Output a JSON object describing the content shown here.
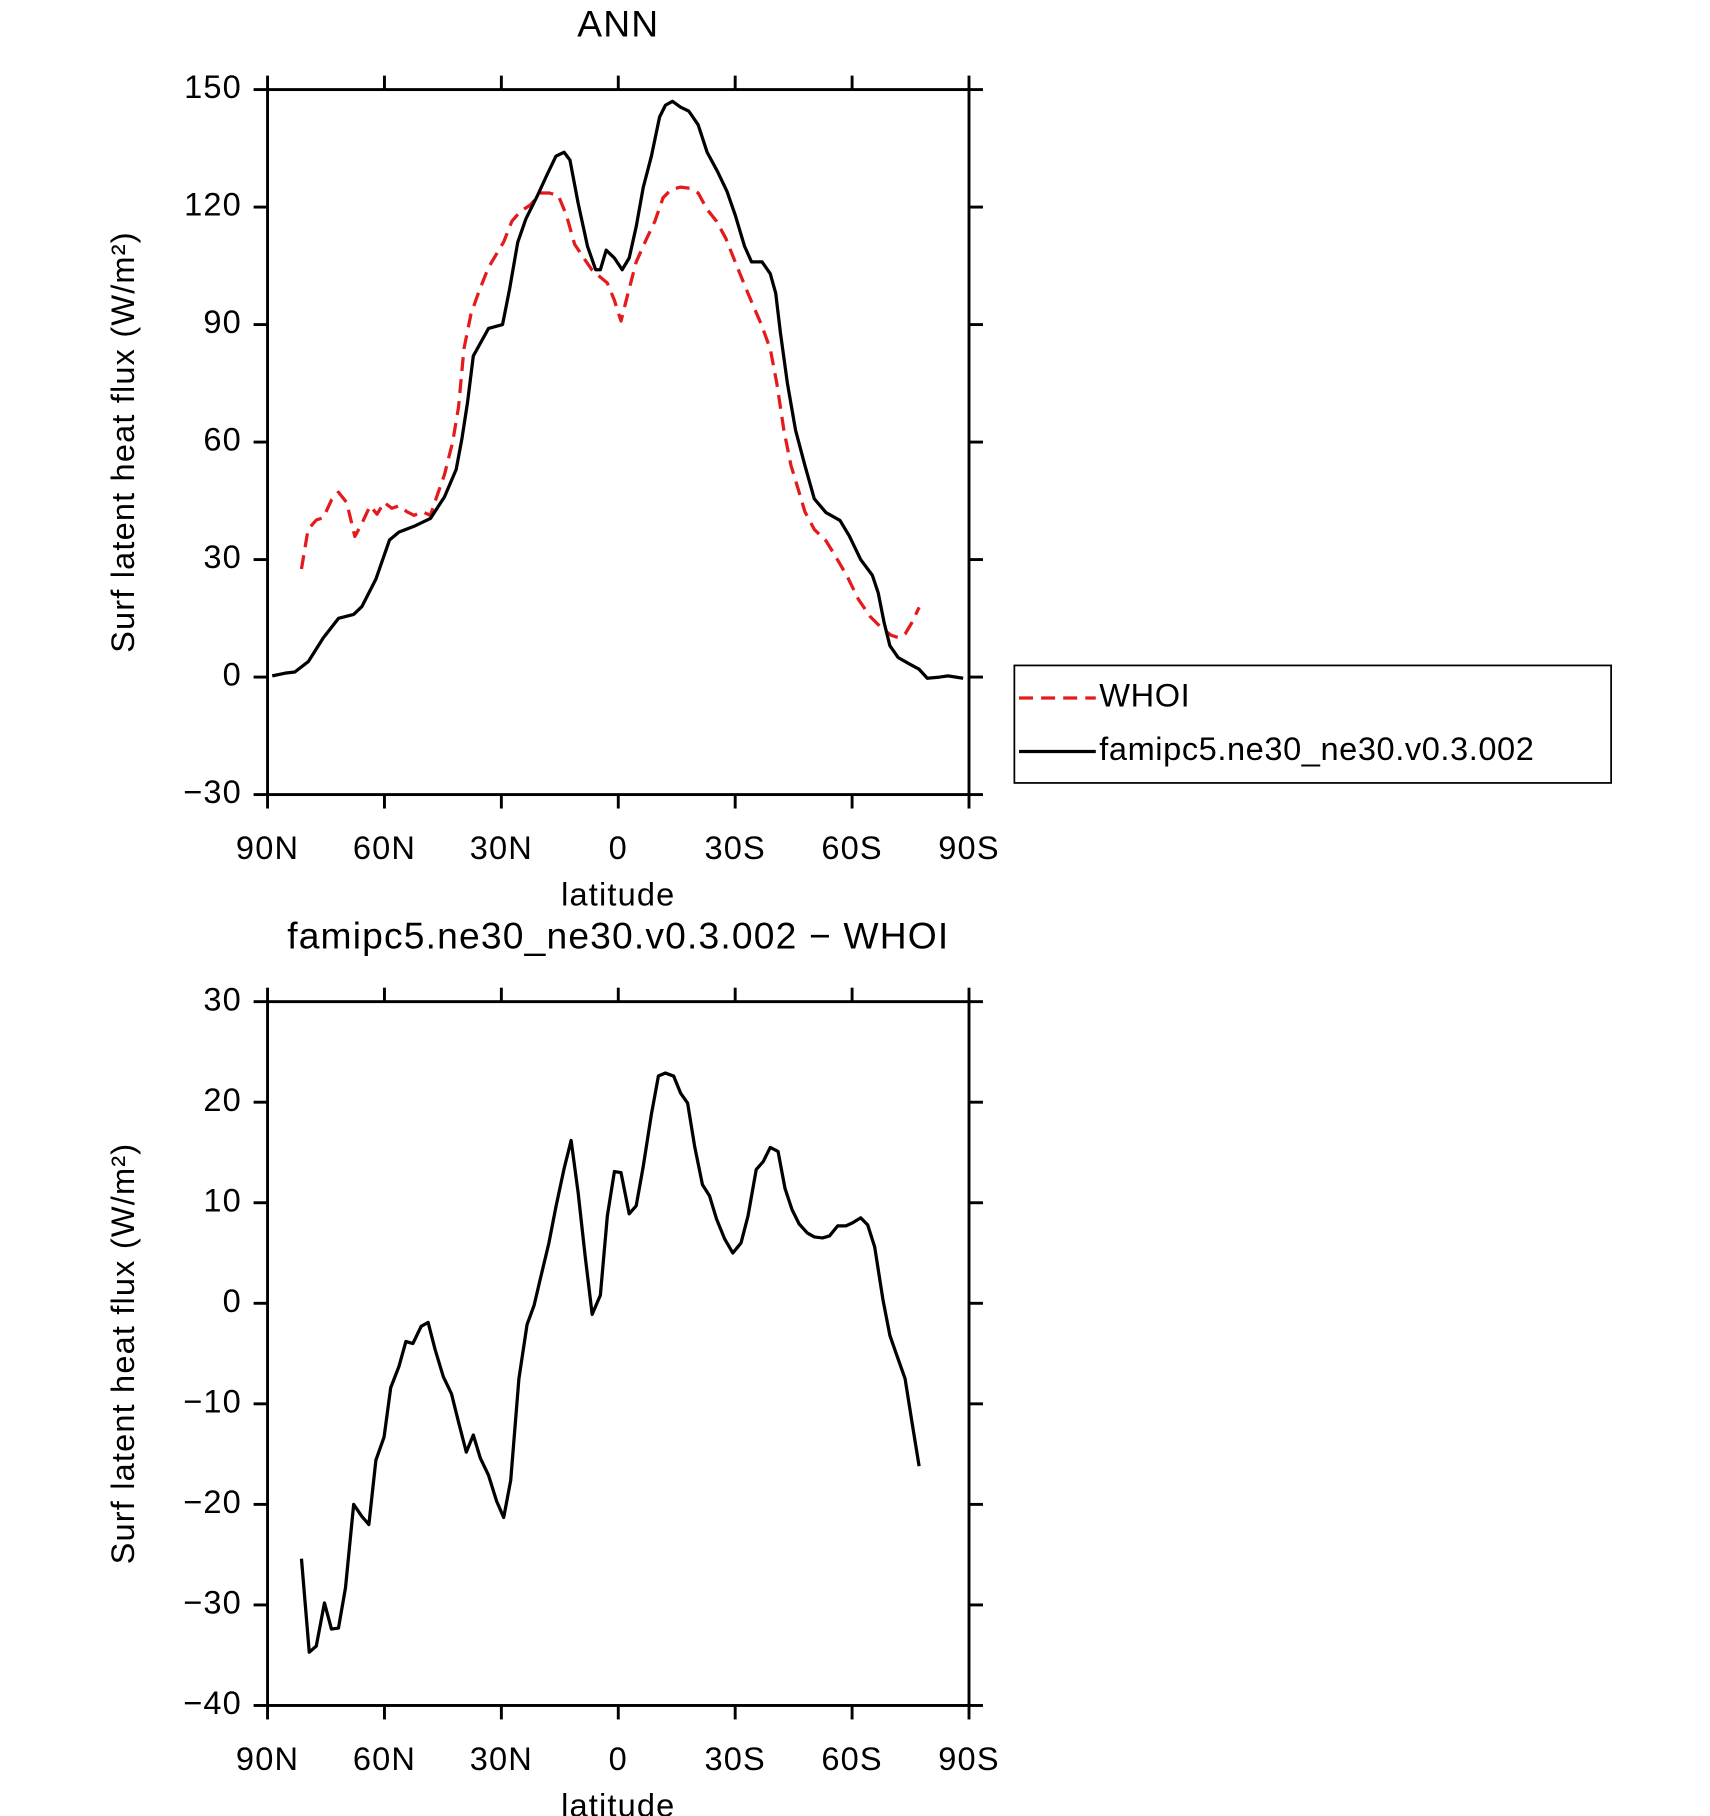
{
  "chart_data": [
    {
      "type": "line",
      "title": "ANN",
      "xlabel": "latitude",
      "ylabel": "Surf latent heat flux (W/m²)",
      "xlim": [
        90,
        -90
      ],
      "xticks": [
        {
          "value": 90,
          "label": "90N"
        },
        {
          "value": 60,
          "label": "60N"
        },
        {
          "value": 30,
          "label": "30N"
        },
        0,
        {
          "value": -30,
          "label": "30S"
        },
        {
          "value": -60,
          "label": "60S"
        },
        {
          "value": -90,
          "label": "90S"
        }
      ],
      "ylim": [
        -30,
        150
      ],
      "yticks": [
        {
          "value": -30,
          "label": "−30"
        },
        0,
        30,
        60,
        90,
        120,
        150
      ],
      "legend": "right",
      "series": [
        {
          "name": "WHOI",
          "color": "#e41a1c",
          "line_style": "dashed",
          "x": [
            81.3,
            79.6,
            77.5,
            75.7,
            73.6,
            71.8,
            69.7,
            67.6,
            65.8,
            63.7,
            61.9,
            60.1,
            58.1,
            56.3,
            54.2,
            52.4,
            50.3,
            48.2,
            46.4,
            44.6,
            42.5,
            41.0,
            39.6,
            37.8,
            35.7,
            33.3,
            31.2,
            29.4,
            27.3,
            25.2,
            22.5,
            19.9,
            17.8,
            15.4,
            13.3,
            11.2,
            8.8,
            6.7,
            4.6,
            2.8,
            1.0,
            -0.7,
            -2.5,
            -4.6,
            -7.3,
            -9.4,
            -11.5,
            -13.6,
            -16.0,
            -18.4,
            -20.5,
            -22.8,
            -25.2,
            -27.6,
            -30.0,
            -32.4,
            -34.5,
            -36.6,
            -39.0,
            -40.7,
            -42.5,
            -44.3,
            -46.1,
            -47.9,
            -50.3,
            -53.3,
            -55.7,
            -58.7,
            -61.6,
            -64.6,
            -67.6,
            -70.0,
            -71.8,
            -73.6,
            -75.4,
            -77.2
          ],
          "values": [
            27.6,
            37.7,
            40.1,
            40.7,
            45.2,
            47.2,
            44.6,
            35.9,
            39.2,
            43.7,
            41.6,
            44.6,
            43.1,
            43.7,
            42.2,
            41.3,
            42.2,
            41.3,
            46.6,
            51.7,
            60.0,
            68.9,
            83.8,
            92.7,
            98.6,
            104.6,
            108.1,
            111.1,
            116.4,
            118.8,
            120.6,
            123.6,
            123.6,
            123.0,
            117.9,
            110.5,
            106.9,
            103.9,
            102.1,
            100.6,
            96.2,
            90.9,
            98.0,
            106.0,
            112.0,
            116.4,
            122.4,
            124.5,
            125.1,
            124.8,
            123.6,
            119.4,
            116.4,
            112.0,
            106.0,
            100.1,
            95.1,
            90.3,
            83.8,
            74.9,
            63.0,
            54.1,
            48.2,
            42.2,
            37.7,
            34.8,
            30.9,
            25.8,
            19.9,
            15.5,
            12.5,
            10.7,
            10.1,
            11.0,
            14.0,
            17.8
          ]
        },
        {
          "name": "famipc5.ne30_ne30.v0.3.002",
          "color": "#000000",
          "line_style": "solid",
          "x": [
            88.8,
            85.5,
            83,
            79.5,
            75.7,
            71.8,
            67.9,
            65.8,
            62.2,
            58.7,
            56.3,
            52.4,
            48.2,
            44.6,
            41.6,
            40.1,
            38.7,
            37.2,
            33.3,
            29.7,
            27.9,
            25.8,
            23.7,
            20.7,
            18.4,
            16,
            13.9,
            12.4,
            10.3,
            7.9,
            5.8,
            4.6,
            3.1,
            1,
            -1,
            -2.8,
            -4.6,
            -6.4,
            -8.5,
            -10.6,
            -12.1,
            -13.9,
            -16,
            -18.1,
            -20.5,
            -22.8,
            -25.5,
            -27.9,
            -30,
            -32.4,
            -34.2,
            -36.9,
            -39,
            -40.4,
            -41.6,
            -43.4,
            -45.5,
            -47.9,
            -50.3,
            -53.3,
            -56.9,
            -59.3,
            -62.2,
            -65.2,
            -66.7,
            -68.2,
            -69.7,
            -71.8,
            -74.8,
            -77.2,
            -79.3,
            -82.5,
            -84.6,
            -88.5
          ],
          "values": [
            0.3,
            1,
            1.3,
            4,
            10,
            15,
            16,
            18,
            25,
            35,
            37,
            38.5,
            40.5,
            46,
            53,
            61,
            70,
            82,
            89,
            90,
            99,
            111,
            117,
            123,
            128,
            133,
            134,
            132,
            121,
            110,
            104,
            104,
            109,
            107,
            104,
            107,
            115,
            125,
            133,
            143,
            146,
            147,
            145.5,
            144.5,
            141,
            134,
            129,
            124,
            118,
            110,
            106,
            106,
            103,
            98,
            88,
            75,
            63,
            54,
            45.5,
            42,
            40,
            36,
            30,
            26,
            21.5,
            14,
            8,
            5,
            3.3,
            2,
            -0.3,
            0,
            0.3,
            -0.3
          ]
        }
      ]
    },
    {
      "type": "line",
      "title": "famipc5.ne30_ne30.v0.3.002 − WHOI",
      "xlabel": "latitude",
      "ylabel": "Surf latent heat flux (W/m²)",
      "xlim": [
        90,
        -90
      ],
      "xticks": [
        {
          "value": 90,
          "label": "90N"
        },
        {
          "value": 60,
          "label": "60N"
        },
        {
          "value": 30,
          "label": "30N"
        },
        0,
        {
          "value": -30,
          "label": "30S"
        },
        {
          "value": -60,
          "label": "60S"
        },
        {
          "value": -90,
          "label": "90S"
        }
      ],
      "ylim": [
        -40,
        30
      ],
      "yticks": [
        {
          "value": -40,
          "label": "−40"
        },
        {
          "value": -30,
          "label": "−30"
        },
        {
          "value": -20,
          "label": "−20"
        },
        {
          "value": -10,
          "label": "−10"
        },
        0,
        10,
        20,
        30
      ],
      "color": "#000000",
      "x": [
        81.3,
        79.3,
        77.5,
        75.4,
        73.6,
        71.8,
        70.0,
        67.9,
        65.8,
        64.0,
        62.2,
        60.1,
        58.4,
        56.3,
        54.5,
        52.7,
        50.6,
        48.8,
        47.0,
        44.9,
        42.8,
        41.0,
        39.0,
        37.2,
        35.4,
        33.3,
        31.2,
        29.4,
        27.6,
        25.5,
        23.4,
        21.6,
        19.9,
        17.8,
        16.0,
        13.9,
        12.1,
        10.3,
        8.5,
        6.7,
        4.6,
        2.8,
        1.0,
        -0.7,
        -2.8,
        -4.6,
        -6.4,
        -8.5,
        -10.3,
        -12.1,
        -14.2,
        -16.0,
        -17.8,
        -19.6,
        -21.6,
        -23.4,
        -25.2,
        -27.3,
        -29.4,
        -31.5,
        -33.3,
        -35.4,
        -37.2,
        -39.0,
        -41.0,
        -42.8,
        -44.6,
        -46.4,
        -48.5,
        -50.3,
        -52.4,
        -54.2,
        -56.3,
        -58.4,
        -60.1,
        -62.2,
        -64.0,
        -65.8,
        -67.9,
        -69.7,
        -71.5,
        -73.6,
        -75.4,
        -77.2
      ],
      "values": [
        -25.4,
        -34.7,
        -34.1,
        -29.8,
        -32.4,
        -32.3,
        -28.3,
        -20.0,
        -21.2,
        -22.0,
        -15.6,
        -13.3,
        -8.4,
        -6.3,
        -3.8,
        -4.0,
        -2.3,
        -1.9,
        -4.6,
        -7.3,
        -9.0,
        -11.8,
        -14.8,
        -13.1,
        -15.4,
        -17.1,
        -19.7,
        -21.3,
        -17.6,
        -7.5,
        -2.1,
        -0.2,
        2.6,
        6.0,
        9.6,
        13.4,
        16.2,
        11.0,
        4.7,
        -1.1,
        0.8,
        8.7,
        13.1,
        13.0,
        8.9,
        9.7,
        13.6,
        18.8,
        22.6,
        22.9,
        22.6,
        20.9,
        19.9,
        15.6,
        11.8,
        10.7,
        8.4,
        6.4,
        5.0,
        6.0,
        8.7,
        13.3,
        14.1,
        15.5,
        15.1,
        11.4,
        9.3,
        7.9,
        7.0,
        6.6,
        6.5,
        6.7,
        7.7,
        7.7,
        8.0,
        8.5,
        7.8,
        5.6,
        0.4,
        -3.2,
        -5.2,
        -7.5,
        -11.9,
        -16.2
      ]
    }
  ]
}
